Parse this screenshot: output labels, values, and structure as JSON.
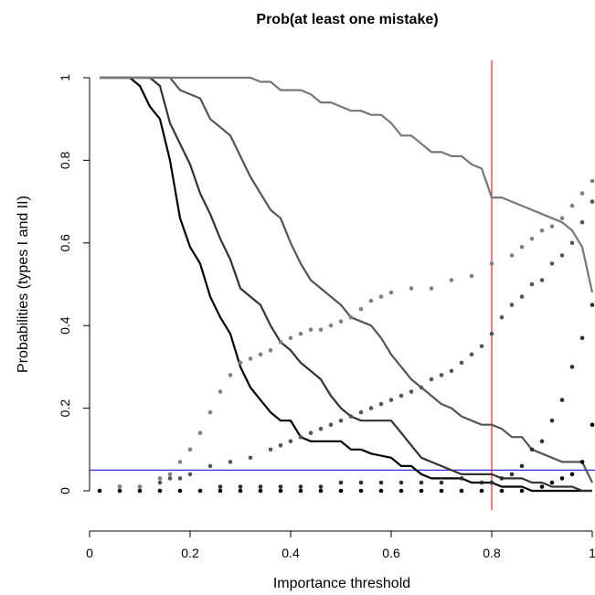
{
  "chart_data": {
    "type": "line",
    "title": "Prob(at least one mistake)",
    "xlabel": "Importance threshold",
    "ylabel": "Probabilities (types I and II)",
    "xlim": [
      0,
      1
    ],
    "ylim": [
      0,
      1
    ],
    "x_ticks": [
      "0",
      "0.2",
      "0.4",
      "0.6",
      "0.8",
      "1"
    ],
    "y_ticks": [
      "0",
      "0.2",
      "0.4",
      "0.6",
      "0.8",
      "1"
    ],
    "grid": false,
    "legend": "none",
    "reference_lines": [
      {
        "orientation": "vertical",
        "value": 0.8,
        "color": "#e8221e"
      },
      {
        "orientation": "horizontal",
        "value": 0.05,
        "color": "#2f2fd9"
      }
    ],
    "line_series": [
      {
        "color": "#000000",
        "x": [
          0.02,
          0.08,
          0.1,
          0.12,
          0.14,
          0.16,
          0.18,
          0.2,
          0.22,
          0.24,
          0.26,
          0.28,
          0.3,
          0.32,
          0.34,
          0.36,
          0.38,
          0.4,
          0.42,
          0.44,
          0.5,
          0.52,
          0.54,
          0.56,
          0.6,
          0.62,
          0.64,
          0.66,
          0.68,
          0.74,
          0.76,
          0.78,
          0.8,
          0.82,
          0.84,
          0.86,
          0.88,
          1.0
        ],
        "y": [
          1,
          1,
          0.98,
          0.93,
          0.9,
          0.8,
          0.66,
          0.59,
          0.55,
          0.47,
          0.42,
          0.38,
          0.3,
          0.25,
          0.22,
          0.19,
          0.17,
          0.17,
          0.13,
          0.12,
          0.12,
          0.1,
          0.1,
          0.09,
          0.08,
          0.06,
          0.06,
          0.04,
          0.03,
          0.03,
          0.02,
          0.02,
          0.02,
          0.01,
          0.01,
          0.01,
          0,
          0
        ]
      },
      {
        "color": "#333333",
        "x": [
          0.02,
          0.12,
          0.14,
          0.16,
          0.18,
          0.2,
          0.22,
          0.24,
          0.26,
          0.28,
          0.3,
          0.32,
          0.34,
          0.36,
          0.38,
          0.4,
          0.42,
          0.44,
          0.46,
          0.48,
          0.5,
          0.52,
          0.54,
          0.56,
          0.58,
          0.6,
          0.62,
          0.64,
          0.66,
          0.68,
          0.7,
          0.72,
          0.74,
          0.76,
          0.78,
          0.8,
          0.82,
          0.84,
          0.86,
          0.88,
          0.9,
          0.92,
          0.94,
          0.96,
          0.98,
          1.0
        ],
        "y": [
          1,
          1,
          0.98,
          0.89,
          0.84,
          0.79,
          0.72,
          0.67,
          0.61,
          0.56,
          0.49,
          0.47,
          0.45,
          0.4,
          0.36,
          0.34,
          0.31,
          0.29,
          0.27,
          0.23,
          0.2,
          0.18,
          0.17,
          0.17,
          0.17,
          0.17,
          0.14,
          0.11,
          0.08,
          0.07,
          0.06,
          0.05,
          0.04,
          0.04,
          0.04,
          0.04,
          0.03,
          0.03,
          0.03,
          0.02,
          0.02,
          0.01,
          0.01,
          0.01,
          0.0,
          0.0
        ]
      },
      {
        "color": "#555555",
        "x": [
          0.02,
          0.16,
          0.18,
          0.2,
          0.22,
          0.24,
          0.26,
          0.28,
          0.3,
          0.32,
          0.34,
          0.36,
          0.38,
          0.4,
          0.42,
          0.44,
          0.46,
          0.48,
          0.5,
          0.52,
          0.54,
          0.56,
          0.58,
          0.6,
          0.62,
          0.64,
          0.66,
          0.68,
          0.7,
          0.72,
          0.74,
          0.76,
          0.78,
          0.8,
          0.82,
          0.84,
          0.86,
          0.88,
          0.9,
          0.92,
          0.94,
          0.96,
          0.98,
          1.0
        ],
        "y": [
          1,
          1,
          0.97,
          0.96,
          0.95,
          0.9,
          0.88,
          0.86,
          0.81,
          0.76,
          0.72,
          0.68,
          0.66,
          0.6,
          0.55,
          0.51,
          0.49,
          0.47,
          0.45,
          0.42,
          0.41,
          0.4,
          0.37,
          0.33,
          0.3,
          0.27,
          0.25,
          0.23,
          0.21,
          0.2,
          0.18,
          0.17,
          0.16,
          0.16,
          0.15,
          0.13,
          0.13,
          0.1,
          0.09,
          0.08,
          0.07,
          0.07,
          0.07,
          0.02
        ]
      },
      {
        "color": "#777777",
        "x": [
          0.02,
          0.3,
          0.32,
          0.34,
          0.36,
          0.38,
          0.4,
          0.42,
          0.44,
          0.46,
          0.48,
          0.5,
          0.52,
          0.54,
          0.56,
          0.58,
          0.6,
          0.62,
          0.64,
          0.66,
          0.68,
          0.7,
          0.72,
          0.74,
          0.76,
          0.78,
          0.8,
          0.82,
          0.84,
          0.86,
          0.88,
          0.9,
          0.92,
          0.94,
          0.96,
          0.98,
          1.0
        ],
        "y": [
          1,
          1,
          1,
          0.99,
          0.99,
          0.97,
          0.97,
          0.97,
          0.96,
          0.94,
          0.94,
          0.93,
          0.92,
          0.92,
          0.91,
          0.91,
          0.89,
          0.86,
          0.86,
          0.84,
          0.82,
          0.82,
          0.81,
          0.81,
          0.79,
          0.78,
          0.71,
          0.71,
          0.7,
          0.69,
          0.68,
          0.67,
          0.66,
          0.65,
          0.63,
          0.59,
          0.48
        ]
      }
    ],
    "dot_series": [
      {
        "color": "#000000",
        "x": [
          0.02,
          0.06,
          0.1,
          0.14,
          0.18,
          0.22,
          0.26,
          0.3,
          0.34,
          0.38,
          0.42,
          0.46,
          0.5,
          0.54,
          0.58,
          0.62,
          0.66,
          0.7,
          0.74,
          0.78,
          0.82,
          0.86,
          0.9,
          0.92,
          0.94,
          0.96,
          0.98,
          1.0
        ],
        "y": [
          0,
          0,
          0,
          0,
          0,
          0,
          0,
          0,
          0,
          0,
          0,
          0,
          0,
          0,
          0,
          0,
          0,
          0,
          0,
          0,
          0,
          0,
          0.01,
          0.02,
          0.03,
          0.04,
          0.07,
          0.16
        ]
      },
      {
        "color": "#2d2d2d",
        "x": [
          0.26,
          0.3,
          0.34,
          0.38,
          0.42,
          0.46,
          0.5,
          0.54,
          0.58,
          0.62,
          0.66,
          0.7,
          0.74,
          0.78,
          0.8,
          0.82,
          0.84,
          0.86,
          0.88,
          0.9,
          0.92,
          0.94,
          0.96,
          0.98,
          1.0
        ],
        "y": [
          0.01,
          0.01,
          0.01,
          0.01,
          0.01,
          0.01,
          0.02,
          0.02,
          0.02,
          0.02,
          0.02,
          0.02,
          0.03,
          0.02,
          0.02,
          0.03,
          0.04,
          0.06,
          0.1,
          0.12,
          0.17,
          0.22,
          0.3,
          0.37,
          0.45
        ]
      },
      {
        "color": "#555555",
        "x": [
          0.06,
          0.1,
          0.14,
          0.16,
          0.18,
          0.2,
          0.24,
          0.28,
          0.32,
          0.36,
          0.38,
          0.4,
          0.42,
          0.44,
          0.46,
          0.48,
          0.5,
          0.52,
          0.54,
          0.56,
          0.58,
          0.6,
          0.62,
          0.64,
          0.66,
          0.68,
          0.7,
          0.72,
          0.74,
          0.76,
          0.78,
          0.8,
          0.82,
          0.84,
          0.86,
          0.88,
          0.9,
          0.92,
          0.94,
          0.96,
          0.98,
          1.0
        ],
        "y": [
          0.01,
          0.01,
          0.02,
          0.03,
          0.03,
          0.04,
          0.06,
          0.07,
          0.08,
          0.1,
          0.11,
          0.12,
          0.13,
          0.14,
          0.15,
          0.16,
          0.17,
          0.18,
          0.19,
          0.2,
          0.21,
          0.22,
          0.23,
          0.24,
          0.25,
          0.27,
          0.28,
          0.29,
          0.31,
          0.33,
          0.35,
          0.38,
          0.42,
          0.45,
          0.47,
          0.5,
          0.51,
          0.55,
          0.57,
          0.6,
          0.65,
          0.7
        ]
      },
      {
        "color": "#808080",
        "x": [
          0.06,
          0.1,
          0.14,
          0.16,
          0.18,
          0.2,
          0.22,
          0.24,
          0.26,
          0.28,
          0.3,
          0.32,
          0.34,
          0.36,
          0.38,
          0.4,
          0.42,
          0.44,
          0.46,
          0.48,
          0.5,
          0.52,
          0.54,
          0.56,
          0.58,
          0.6,
          0.64,
          0.68,
          0.72,
          0.76,
          0.8,
          0.84,
          0.86,
          0.88,
          0.9,
          0.92,
          0.94,
          0.96,
          0.98,
          1.0
        ],
        "y": [
          0.01,
          0.01,
          0.03,
          0.04,
          0.07,
          0.1,
          0.14,
          0.19,
          0.24,
          0.28,
          0.31,
          0.32,
          0.33,
          0.34,
          0.36,
          0.37,
          0.38,
          0.39,
          0.39,
          0.4,
          0.41,
          0.42,
          0.44,
          0.46,
          0.47,
          0.48,
          0.49,
          0.49,
          0.51,
          0.52,
          0.55,
          0.57,
          0.59,
          0.61,
          0.63,
          0.64,
          0.66,
          0.69,
          0.72,
          0.75
        ]
      }
    ]
  }
}
